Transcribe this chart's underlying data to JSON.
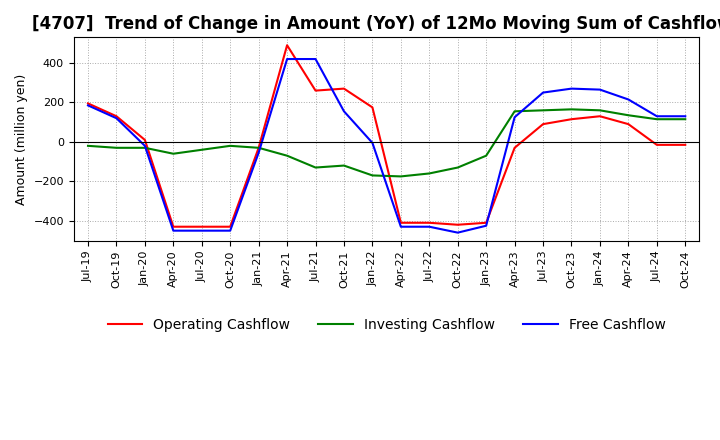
{
  "title": "[4707]  Trend of Change in Amount (YoY) of 12Mo Moving Sum of Cashflows",
  "ylabel": "Amount (million yen)",
  "ylim": [
    -500,
    530
  ],
  "yticks": [
    -400,
    -200,
    0,
    200,
    400
  ],
  "x_labels": [
    "Jul-19",
    "Oct-19",
    "Jan-20",
    "Apr-20",
    "Jul-20",
    "Oct-20",
    "Jan-21",
    "Apr-21",
    "Jul-21",
    "Oct-21",
    "Jan-22",
    "Apr-22",
    "Jul-22",
    "Oct-22",
    "Jan-23",
    "Apr-23",
    "Jul-23",
    "Oct-23",
    "Jan-24",
    "Apr-24",
    "Jul-24",
    "Oct-24"
  ],
  "operating": [
    195,
    130,
    10,
    -430,
    -430,
    -430,
    -30,
    490,
    260,
    270,
    175,
    -410,
    -410,
    -420,
    -410,
    -30,
    90,
    115,
    130,
    90,
    -15,
    -15
  ],
  "investing": [
    -20,
    -30,
    -30,
    -60,
    -40,
    -20,
    -30,
    -70,
    -130,
    -120,
    -170,
    -175,
    -160,
    -130,
    -70,
    155,
    160,
    165,
    160,
    135,
    115,
    115
  ],
  "free": [
    185,
    120,
    -20,
    -450,
    -450,
    -450,
    -55,
    420,
    420,
    155,
    -5,
    -430,
    -430,
    -460,
    -425,
    125,
    250,
    270,
    265,
    215,
    130,
    130
  ],
  "operating_color": "#ff0000",
  "investing_color": "#008000",
  "free_color": "#0000ff",
  "background_color": "#ffffff",
  "grid_color": "#aaaaaa",
  "title_fontsize": 12,
  "axis_fontsize": 9,
  "tick_fontsize": 8,
  "legend_fontsize": 10
}
